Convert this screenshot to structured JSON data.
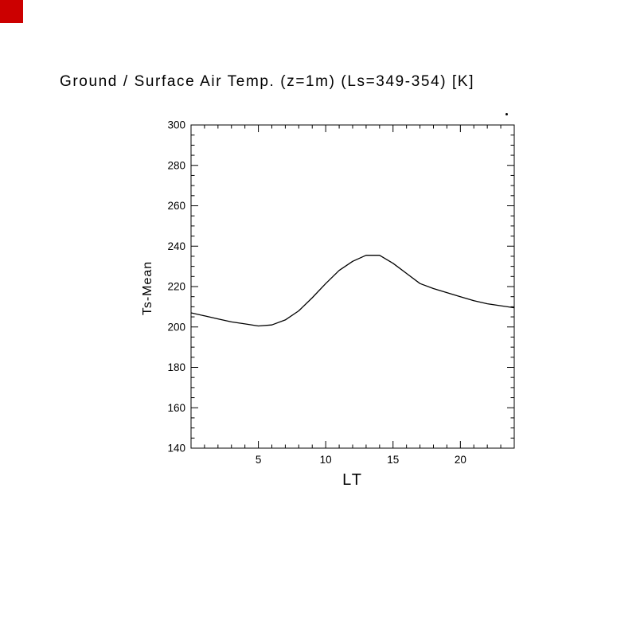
{
  "page": {
    "background": "#ffffff"
  },
  "decorations": {
    "corner_square_color": "#cc0000",
    "line_color": "#000000"
  },
  "chart_data": {
    "type": "line",
    "title": "Ground / Surface Air Temp. (z=1m) (Ls=349-354) [K]",
    "xlabel": "LT",
    "ylabel": "Ts-Mean",
    "xlim": [
      0,
      24
    ],
    "ylim": [
      140,
      300
    ],
    "x_major_ticks": [
      5,
      10,
      15,
      20
    ],
    "x_minor_step": 1,
    "y_major_ticks": [
      140,
      160,
      180,
      200,
      220,
      240,
      260,
      280,
      300
    ],
    "y_minor_step": 5,
    "grid": false,
    "legend": "none",
    "series": [
      {
        "name": "Ts-Mean",
        "x": [
          0,
          1,
          2,
          3,
          4,
          5,
          6,
          7,
          8,
          9,
          10,
          11,
          12,
          13,
          14,
          15,
          16,
          17,
          18,
          19,
          20,
          21,
          22,
          23,
          24
        ],
        "y": [
          207,
          205.5,
          204,
          202.5,
          201.5,
          200.5,
          201,
          203.5,
          208,
          214.5,
          221.5,
          228,
          232.5,
          235.5,
          235.5,
          231.5,
          226.5,
          221.5,
          219,
          217,
          215,
          213,
          211.5,
          210.5,
          209.5
        ]
      }
    ]
  }
}
